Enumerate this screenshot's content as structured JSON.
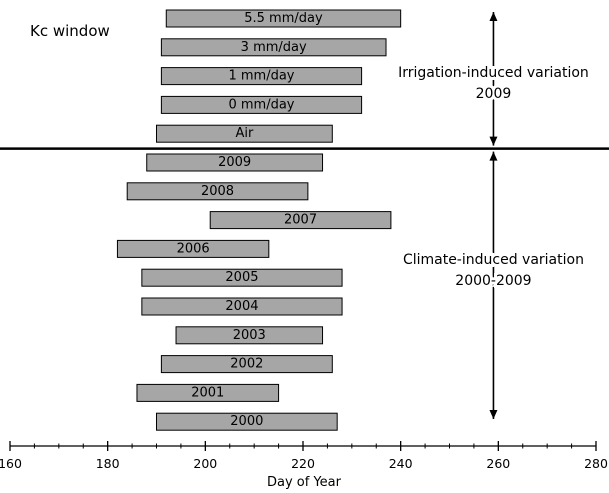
{
  "chart_data": {
    "type": "bar",
    "orientation": "horizontal",
    "corner_label": "Kc window",
    "xlabel": "Day of Year",
    "xlim": [
      160,
      280
    ],
    "xticks": [
      160,
      180,
      200,
      220,
      240,
      260,
      280
    ],
    "minor_tick_step": 5,
    "bars": [
      {
        "label": "5.5 mm/day",
        "start": 192,
        "end": 240
      },
      {
        "label": "3 mm/day",
        "start": 191,
        "end": 237
      },
      {
        "label": "1 mm/day",
        "start": 191,
        "end": 232
      },
      {
        "label": "0 mm/day",
        "start": 191,
        "end": 232
      },
      {
        "label": "Air",
        "start": 190,
        "end": 226
      },
      {
        "label": "2009",
        "start": 188,
        "end": 224
      },
      {
        "label": "2008",
        "start": 184,
        "end": 221
      },
      {
        "label": "2007",
        "start": 201,
        "end": 238
      },
      {
        "label": "2006",
        "start": 182,
        "end": 213
      },
      {
        "label": "2005",
        "start": 187,
        "end": 228
      },
      {
        "label": "2004",
        "start": 187,
        "end": 228
      },
      {
        "label": "2003",
        "start": 194,
        "end": 224
      },
      {
        "label": "2002",
        "start": 191,
        "end": 226
      },
      {
        "label": "2001",
        "start": 186,
        "end": 215
      },
      {
        "label": "2000",
        "start": 190,
        "end": 227
      }
    ],
    "divider_after_index": 4,
    "annotations": [
      {
        "line1": "Irrigation-induced variation",
        "line2": "2009",
        "x": 259,
        "spans": "above divider"
      },
      {
        "line1": "Climate-induced variation",
        "line2": "2000-2009",
        "x": 259,
        "spans": "below divider"
      }
    ],
    "colors": {
      "bar_fill": "#a6a6a6",
      "bar_stroke": "#000000",
      "lines": "#000000"
    }
  }
}
